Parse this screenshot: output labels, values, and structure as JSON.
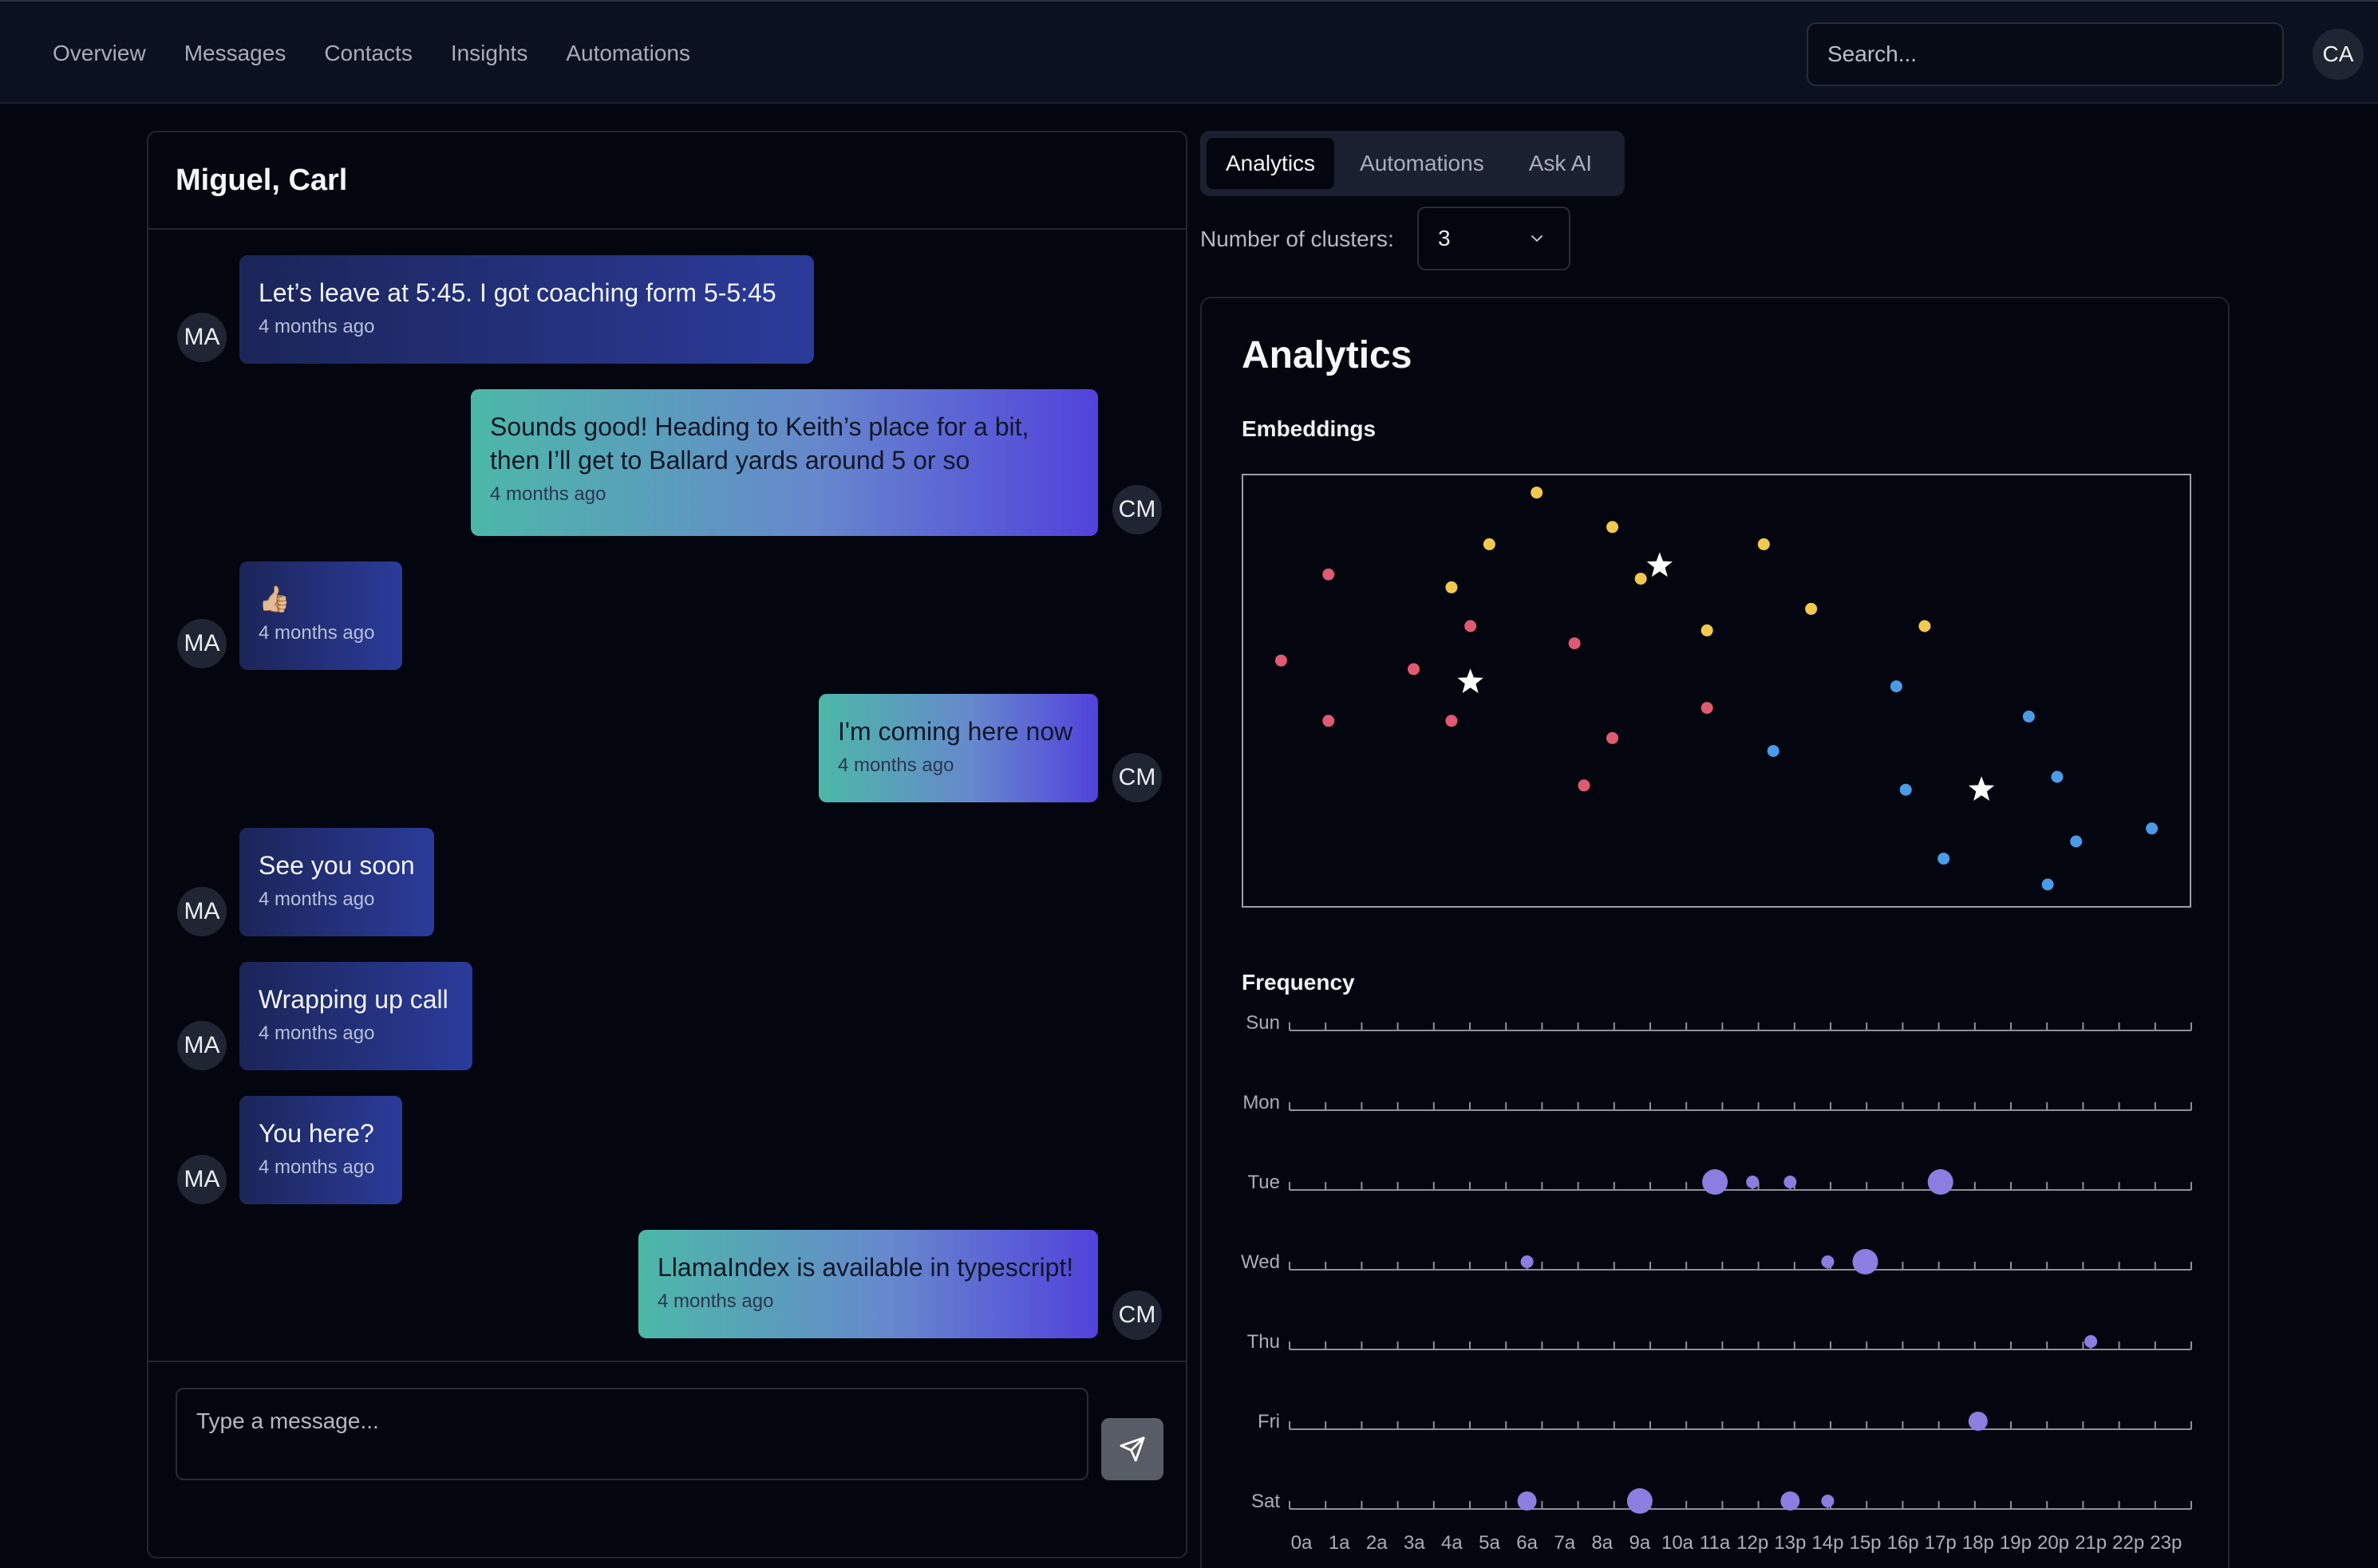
{
  "nav": {
    "links": [
      "Overview",
      "Messages",
      "Contacts",
      "Insights",
      "Automations"
    ],
    "search_placeholder": "Search...",
    "avatar": "CA"
  },
  "chat": {
    "title": "Miguel, Carl",
    "messages": [
      {
        "from": "MA",
        "direction": "in",
        "text": "Let’s leave at 5:45. I got coaching form 5-5:45",
        "time": "4 months ago"
      },
      {
        "from": "CM",
        "direction": "out",
        "text": "Sounds good! Heading to Keith’s place for a bit, then I’ll get to Ballard yards around 5 or so",
        "time": "4 months ago"
      },
      {
        "from": "MA",
        "direction": "in",
        "text": "👍🏼",
        "time": "4 months ago"
      },
      {
        "from": "CM",
        "direction": "out",
        "text": "I'm coming here now",
        "time": "4 months ago"
      },
      {
        "from": "MA",
        "direction": "in",
        "text": "See you soon",
        "time": "4 months ago"
      },
      {
        "from": "MA",
        "direction": "in",
        "text": "Wrapping up call",
        "time": "4 months ago"
      },
      {
        "from": "MA",
        "direction": "in",
        "text": "You here?",
        "time": "4 months ago"
      },
      {
        "from": "CM",
        "direction": "out",
        "text": "LlamaIndex is available in typescript!",
        "time": "4 months ago"
      }
    ],
    "composer_placeholder": "Type a message...",
    "send_icon": "send-icon"
  },
  "right": {
    "tabs": [
      "Analytics",
      "Automations",
      "Ask AI"
    ],
    "active_tab": "Analytics",
    "clusters_label": "Number of clusters:",
    "clusters_value": "3",
    "card_title": "Analytics",
    "embeddings_label": "Embeddings",
    "frequency_label": "Frequency"
  },
  "colors": {
    "cluster_red": "#e05a72",
    "cluster_yellow": "#f2c94c",
    "cluster_blue": "#4a9be8",
    "frequency_dot": "#8b7ee0",
    "centroid": "#ffffff"
  },
  "chart_data": [
    {
      "type": "scatter",
      "title": "Embeddings",
      "series": [
        {
          "values": [
            [
              0.04,
              0.57
            ],
            [
              0.09,
              0.77
            ],
            [
              0.09,
              0.43
            ],
            [
              0.18,
              0.55
            ],
            [
              0.22,
              0.43
            ],
            [
              0.24,
              0.65
            ],
            [
              0.35,
              0.61
            ],
            [
              0.39,
              0.39
            ],
            [
              0.36,
              0.28
            ],
            [
              0.49,
              0.46
            ]
          ]
        },
        {
          "values": [
            [
              0.22,
              0.74
            ],
            [
              0.26,
              0.84
            ],
            [
              0.31,
              0.96
            ],
            [
              0.39,
              0.88
            ],
            [
              0.42,
              0.76
            ],
            [
              0.49,
              0.64
            ],
            [
              0.55,
              0.84
            ],
            [
              0.6,
              0.69
            ],
            [
              0.72,
              0.65
            ]
          ]
        },
        {
          "values": [
            [
              0.56,
              0.36
            ],
            [
              0.69,
              0.51
            ],
            [
              0.7,
              0.27
            ],
            [
              0.74,
              0.11
            ],
            [
              0.83,
              0.44
            ],
            [
              0.86,
              0.3
            ],
            [
              0.88,
              0.15
            ],
            [
              0.85,
              0.05
            ],
            [
              0.96,
              0.18
            ]
          ]
        }
      ],
      "centroids": [
        [
          0.24,
          0.52
        ],
        [
          0.44,
          0.79
        ],
        [
          0.78,
          0.27
        ]
      ]
    },
    {
      "type": "scatter",
      "title": "Frequency",
      "x_categories": [
        "0a",
        "1a",
        "2a",
        "3a",
        "4a",
        "5a",
        "6a",
        "7a",
        "8a",
        "9a",
        "10a",
        "11a",
        "12p",
        "13p",
        "14p",
        "15p",
        "16p",
        "17p",
        "18p",
        "19p",
        "20p",
        "21p",
        "22p",
        "23p"
      ],
      "y_categories": [
        "Sun",
        "Mon",
        "Tue",
        "Wed",
        "Thu",
        "Fri",
        "Sat"
      ],
      "points": [
        {
          "day": "Tue",
          "hour": 11,
          "count": 3
        },
        {
          "day": "Tue",
          "hour": 12,
          "count": 1
        },
        {
          "day": "Tue",
          "hour": 13,
          "count": 1
        },
        {
          "day": "Tue",
          "hour": 17,
          "count": 3
        },
        {
          "day": "Wed",
          "hour": 6,
          "count": 1
        },
        {
          "day": "Wed",
          "hour": 14,
          "count": 1
        },
        {
          "day": "Wed",
          "hour": 15,
          "count": 3
        },
        {
          "day": "Thu",
          "hour": 21,
          "count": 1
        },
        {
          "day": "Fri",
          "hour": 18,
          "count": 2
        },
        {
          "day": "Sat",
          "hour": 6,
          "count": 2
        },
        {
          "day": "Sat",
          "hour": 9,
          "count": 3
        },
        {
          "day": "Sat",
          "hour": 13,
          "count": 2
        },
        {
          "day": "Sat",
          "hour": 14,
          "count": 1
        }
      ]
    }
  ]
}
